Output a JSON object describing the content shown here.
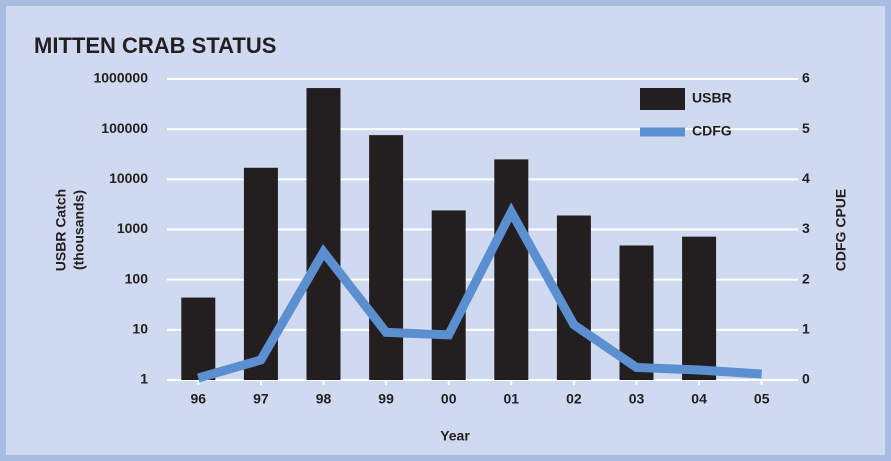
{
  "chart_data": {
    "type": "bar_line",
    "title": "MITTEN CRAB STATUS",
    "categories": [
      "96",
      "97",
      "98",
      "99",
      "00",
      "01",
      "02",
      "03",
      "04",
      "05"
    ],
    "series": [
      {
        "name": "USBR",
        "color": "#231f20",
        "values": [
          44,
          17000,
          660000,
          76000,
          2400,
          25000,
          1900,
          480,
          720,
          null
        ]
      },
      {
        "name": "CDFG",
        "color": "#5b8fcf",
        "axis": "y2",
        "values": [
          0.04,
          0.4,
          2.55,
          0.95,
          0.9,
          3.35,
          1.1,
          0.25,
          0.2,
          0.12
        ]
      }
    ],
    "ylabel": [
      "USBR Catch",
      "(thousands)"
    ],
    "y2label": "CDFG CPUE",
    "xlabel": "Year",
    "ylim": [
      1,
      1000000
    ],
    "yticks": [
      1,
      10,
      100,
      1000,
      10000,
      100000,
      1000000
    ],
    "ylog": true,
    "y2lim": [
      0,
      6
    ],
    "y2ticks": [
      0,
      1,
      2,
      3,
      4,
      5,
      6
    ],
    "grid": true,
    "legend": "upper right"
  }
}
